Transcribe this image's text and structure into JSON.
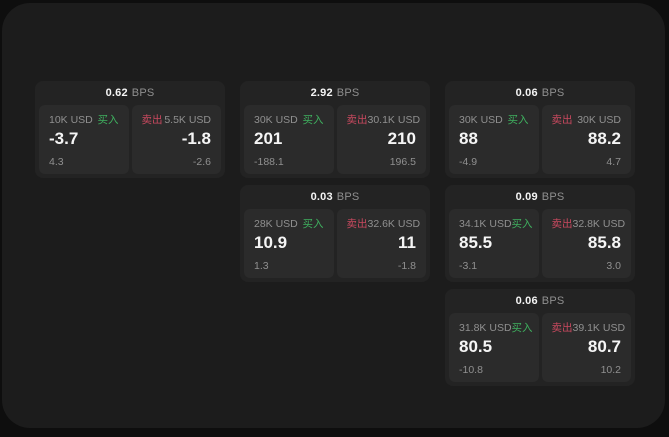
{
  "colors": {
    "outer_bg": "#0e0e0e",
    "panel_bg": "#1c1c1c",
    "card_bg": "#232323",
    "subpanel_bg": "#2b2b2b",
    "text_primary": "#f5f5f5",
    "text_secondary": "#909090",
    "buy_color": "#3fb05f",
    "sell_color": "#c9495f"
  },
  "labels": {
    "bps_unit": "BPS",
    "buy": "买入",
    "sell": "卖出"
  },
  "cards": [
    {
      "bps": "0.62",
      "buy": {
        "size": "10K USD",
        "value": "-3.7",
        "delta": "4.3"
      },
      "sell": {
        "size": "5.5K USD",
        "value": "-1.8",
        "delta": "-2.6"
      }
    },
    {
      "bps": "2.92",
      "buy": {
        "size": "30K USD",
        "value": "201",
        "delta": "-188.1"
      },
      "sell": {
        "size": "30.1K USD",
        "value": "210",
        "delta": "196.5"
      }
    },
    {
      "bps": "0.06",
      "buy": {
        "size": "30K USD",
        "value": "88",
        "delta": "-4.9"
      },
      "sell": {
        "size": "30K USD",
        "value": "88.2",
        "delta": "4.7"
      }
    },
    {
      "bps": "0.03",
      "buy": {
        "size": "28K USD",
        "value": "10.9",
        "delta": "1.3"
      },
      "sell": {
        "size": "32.6K USD",
        "value": "11",
        "delta": "-1.8"
      }
    },
    {
      "bps": "0.09",
      "buy": {
        "size": "34.1K USD",
        "value": "85.5",
        "delta": "-3.1"
      },
      "sell": {
        "size": "32.8K USD",
        "value": "85.8",
        "delta": "3.0"
      }
    },
    {
      "bps": "0.06",
      "buy": {
        "size": "31.8K USD",
        "value": "80.5",
        "delta": "-10.8"
      },
      "sell": {
        "size": "39.1K USD",
        "value": "80.7",
        "delta": "10.2"
      }
    }
  ]
}
